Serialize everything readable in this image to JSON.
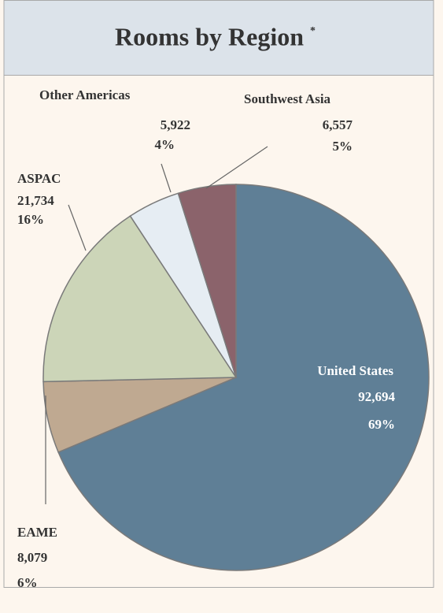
{
  "chart_data": {
    "type": "pie",
    "title": "Rooms by Region",
    "title_note": "*",
    "categories": [
      "United States",
      "EAME",
      "ASPAC",
      "Other Americas",
      "Southwest Asia"
    ],
    "values": [
      92694,
      8079,
      21734,
      5922,
      6557
    ],
    "value_labels": [
      "92,694",
      "8,079",
      "21,734",
      "5,922",
      "6,557"
    ],
    "percents": [
      69,
      6,
      16,
      4,
      5
    ],
    "percent_labels": [
      "69%",
      "6%",
      "16%",
      "4%",
      "5%"
    ],
    "colors": [
      "#5f7f96",
      "#bfa991",
      "#ccd5b8",
      "#e6edf3",
      "#8b636b"
    ]
  }
}
